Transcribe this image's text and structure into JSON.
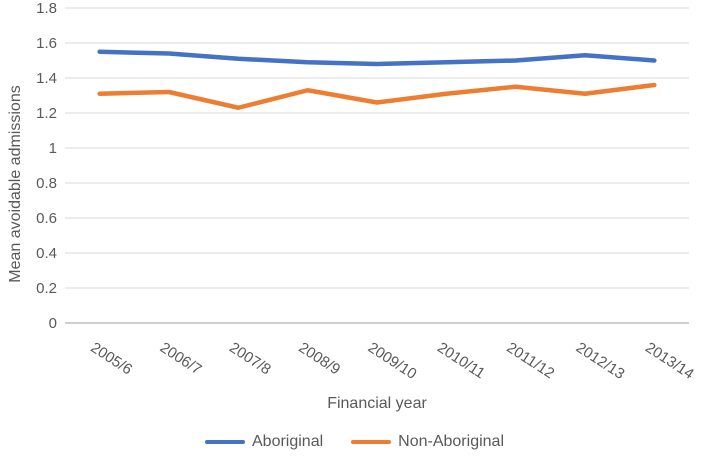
{
  "chart_data": {
    "type": "line",
    "title": "",
    "xlabel": "Financial year",
    "ylabel": "Mean avoidable admissions",
    "categories": [
      "2005/6",
      "2006/7",
      "2007/8",
      "2008/9",
      "2009/10",
      "2010/11",
      "2011/12",
      "2012/13",
      "2013/14"
    ],
    "series": [
      {
        "name": "Aboriginal",
        "color": "#4472C4",
        "values": [
          1.55,
          1.54,
          1.51,
          1.49,
          1.48,
          1.49,
          1.5,
          1.53,
          1.5
        ]
      },
      {
        "name": "Non-Aboriginal",
        "color": "#ED7D31",
        "values": [
          1.31,
          1.32,
          1.23,
          1.33,
          1.26,
          1.31,
          1.35,
          1.31,
          1.36
        ]
      }
    ],
    "ylim": [
      0,
      1.8
    ],
    "y_tick_labels": [
      "0",
      "0.2",
      "0.4",
      "0.6",
      "0.8",
      "1",
      "1.2",
      "1.4",
      "1.6",
      "1.8"
    ],
    "grid": true,
    "legend_position": "bottom",
    "colors": {
      "gridline": "#D9D9D9",
      "axis_line": "#BFBFBF",
      "text": "#595959"
    }
  }
}
